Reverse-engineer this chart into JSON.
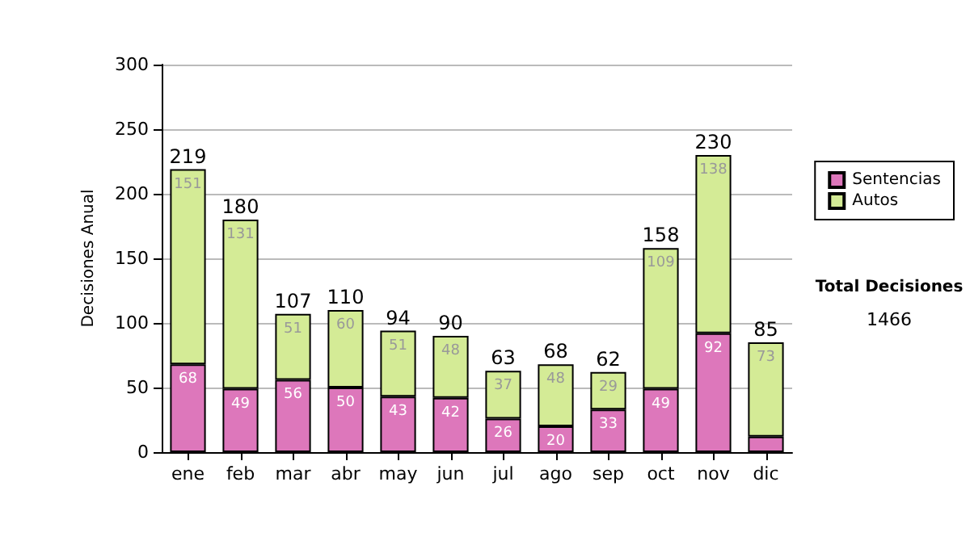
{
  "chart_data": {
    "type": "bar",
    "ylabel": "Decisiones Anual",
    "categories": [
      "ene",
      "feb",
      "mar",
      "abr",
      "may",
      "jun",
      "jul",
      "ago",
      "sep",
      "oct",
      "nov",
      "dic"
    ],
    "series": [
      {
        "name": "Sentencias",
        "color": "#dd77bb",
        "values": [
          68,
          49,
          56,
          50,
          43,
          42,
          26,
          20,
          33,
          49,
          92,
          12
        ],
        "value_labels": [
          "68",
          "49",
          "56",
          "50",
          "43",
          "42",
          "26",
          "20",
          "33",
          "49",
          "92",
          null
        ]
      },
      {
        "name": "Autos",
        "color": "#d4eb96",
        "values": [
          151,
          131,
          51,
          60,
          51,
          48,
          37,
          48,
          29,
          109,
          138,
          73
        ],
        "value_labels": [
          "151",
          "131",
          "51",
          "60",
          "51",
          "48",
          "37",
          "48",
          "29",
          "109",
          "138",
          "73"
        ]
      }
    ],
    "stacked": true,
    "totals": [
      "219",
      "180",
      "107",
      "110",
      "94",
      "90",
      "63",
      "68",
      "62",
      "158",
      "230",
      "85"
    ],
    "ylim": [
      0,
      300
    ],
    "yticks": [
      0,
      50,
      100,
      150,
      200,
      250,
      300
    ],
    "grid": "y",
    "legend": "right",
    "annotations": [
      "Total Decisiones",
      "1466"
    ]
  }
}
